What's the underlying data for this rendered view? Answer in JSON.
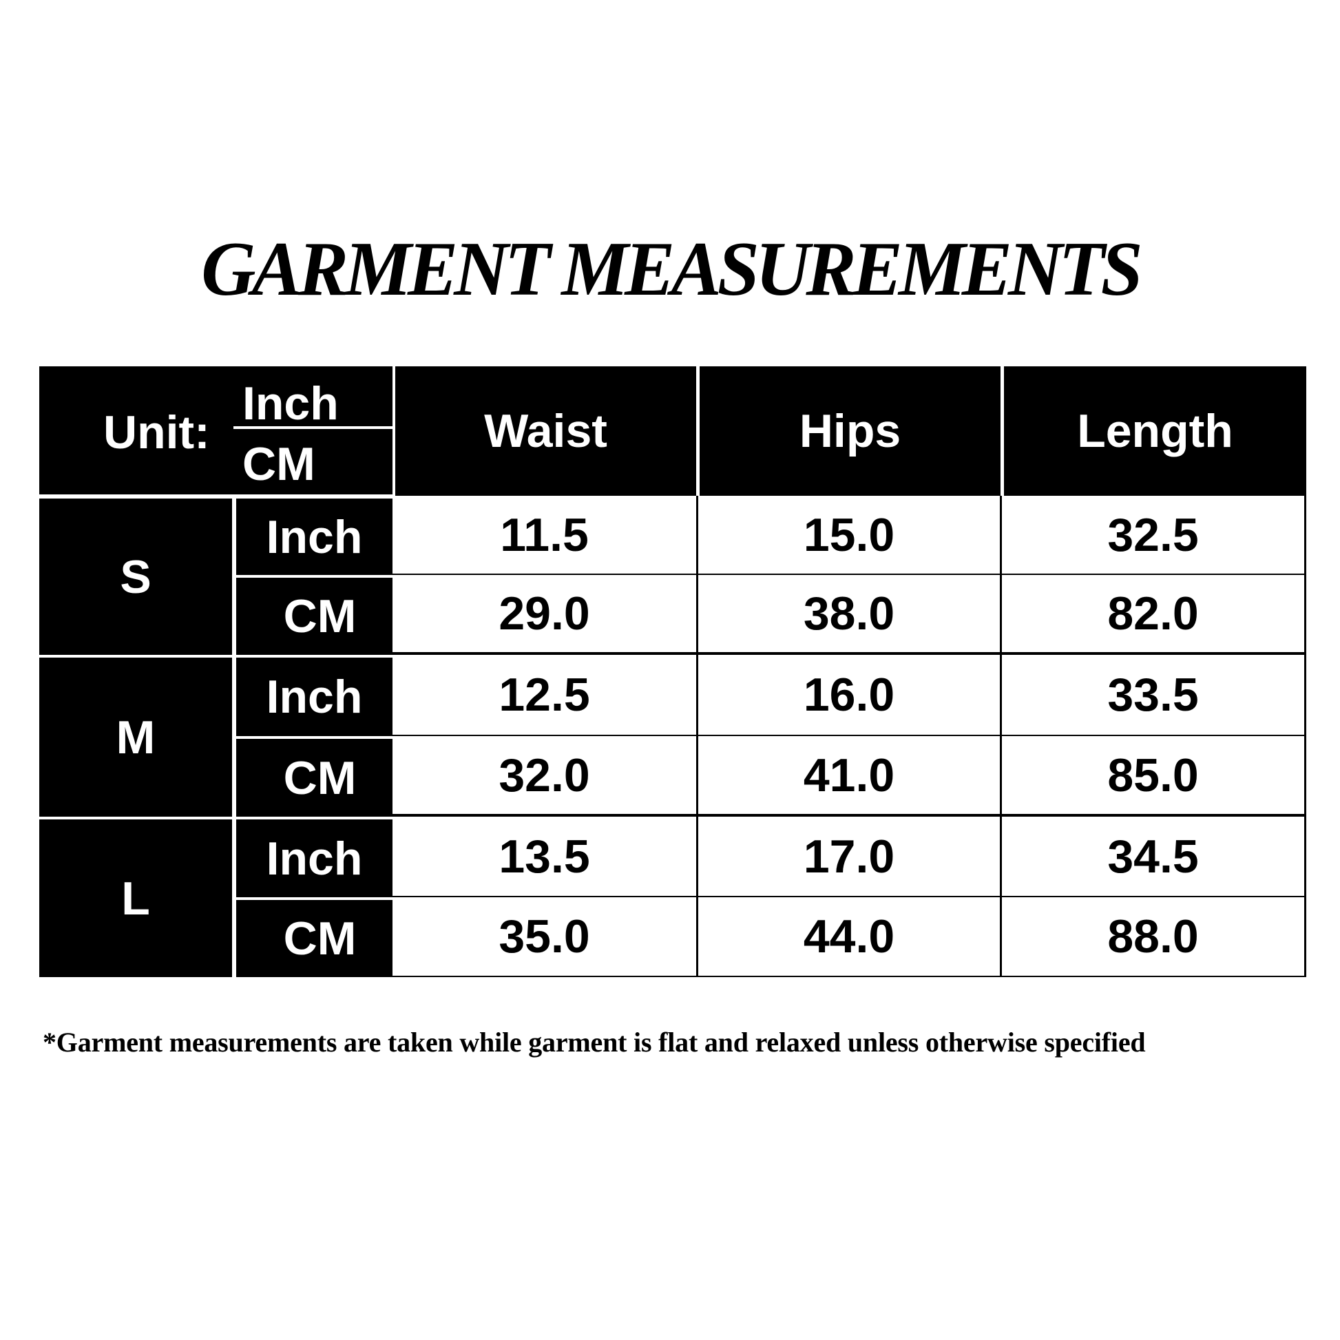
{
  "title": "GARMENT MEASUREMENTS",
  "table": {
    "unit_label": "Unit:",
    "unit_top": "Inch",
    "unit_bottom": "CM",
    "columns": [
      "Waist",
      "Hips",
      "Length"
    ],
    "sizes": [
      {
        "size": "S",
        "rows": [
          {
            "unit": "Inch",
            "values": [
              "11.5",
              "15.0",
              "32.5"
            ]
          },
          {
            "unit": "CM",
            "values": [
              "29.0",
              "38.0",
              "82.0"
            ]
          }
        ]
      },
      {
        "size": "M",
        "rows": [
          {
            "unit": "Inch",
            "values": [
              "12.5",
              "16.0",
              "33.5"
            ]
          },
          {
            "unit": "CM",
            "values": [
              "32.0",
              "41.0",
              "85.0"
            ]
          }
        ]
      },
      {
        "size": "L",
        "rows": [
          {
            "unit": "Inch",
            "values": [
              "13.5",
              "17.0",
              "34.5"
            ]
          },
          {
            "unit": "CM",
            "values": [
              "35.0",
              "44.0",
              "88.0"
            ]
          }
        ]
      }
    ]
  },
  "footnote": "*Garment measurements are taken while garment is flat and relaxed unless otherwise specified"
}
